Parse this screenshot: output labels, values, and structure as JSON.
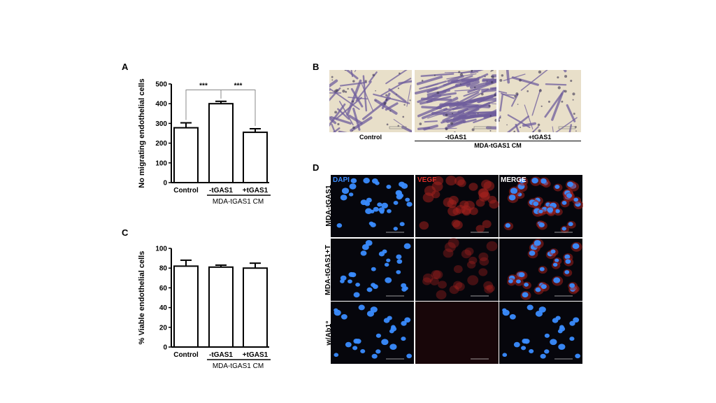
{
  "panels": {
    "a": {
      "letter": "A"
    },
    "b": {
      "letter": "B"
    },
    "c": {
      "letter": "C"
    },
    "d": {
      "letter": "D"
    }
  },
  "chart_data": [
    {
      "panel": "A",
      "type": "bar",
      "categories": [
        "Control",
        "-tGAS1",
        "+tGAS1"
      ],
      "values": [
        278,
        400,
        255
      ],
      "errors": [
        25,
        12,
        18
      ],
      "ylabel": "No migrating endothelial cells",
      "ylim": [
        0,
        500
      ],
      "yticks": [
        "0",
        "100",
        "200",
        "300",
        "400",
        "500"
      ],
      "group_label": "MDA-tGAS1 CM",
      "significance": [
        {
          "from": "Control",
          "to": "-tGAS1",
          "label": "***"
        },
        {
          "from": "-tGAS1",
          "to": "+tGAS1",
          "label": "***"
        }
      ],
      "bar_color": "#ffffff",
      "edge_color": "#000000"
    },
    {
      "panel": "C",
      "type": "bar",
      "categories": [
        "Control",
        "-tGAS1",
        "+tGAS1"
      ],
      "values": [
        82,
        81,
        80
      ],
      "errors": [
        6,
        2,
        5
      ],
      "ylabel": "% Viable endothelial cells",
      "ylim": [
        0,
        100
      ],
      "yticks": [
        "0",
        "20",
        "40",
        "60",
        "80",
        "100"
      ],
      "group_label": "MDA-tGAS1 CM",
      "bar_color": "#ffffff",
      "edge_color": "#000000"
    }
  ],
  "panel_b": {
    "captions": [
      "Control",
      "-tGAS1",
      "+tGAS1"
    ],
    "group_label": "MDA-tGAS1 CM",
    "image_color": "#6f5e9c",
    "background_color": "#e8dfc9"
  },
  "panel_d": {
    "columns": [
      "DAPI",
      "VEGF",
      "MERGE"
    ],
    "rows": [
      "MDA-tGAS1",
      "MDA-tGAS1+T",
      "w/Ab1°"
    ],
    "dapi_color": "#3a8cff",
    "vegf_color": "#a0201e",
    "merge_label_color": "#ffffff"
  }
}
